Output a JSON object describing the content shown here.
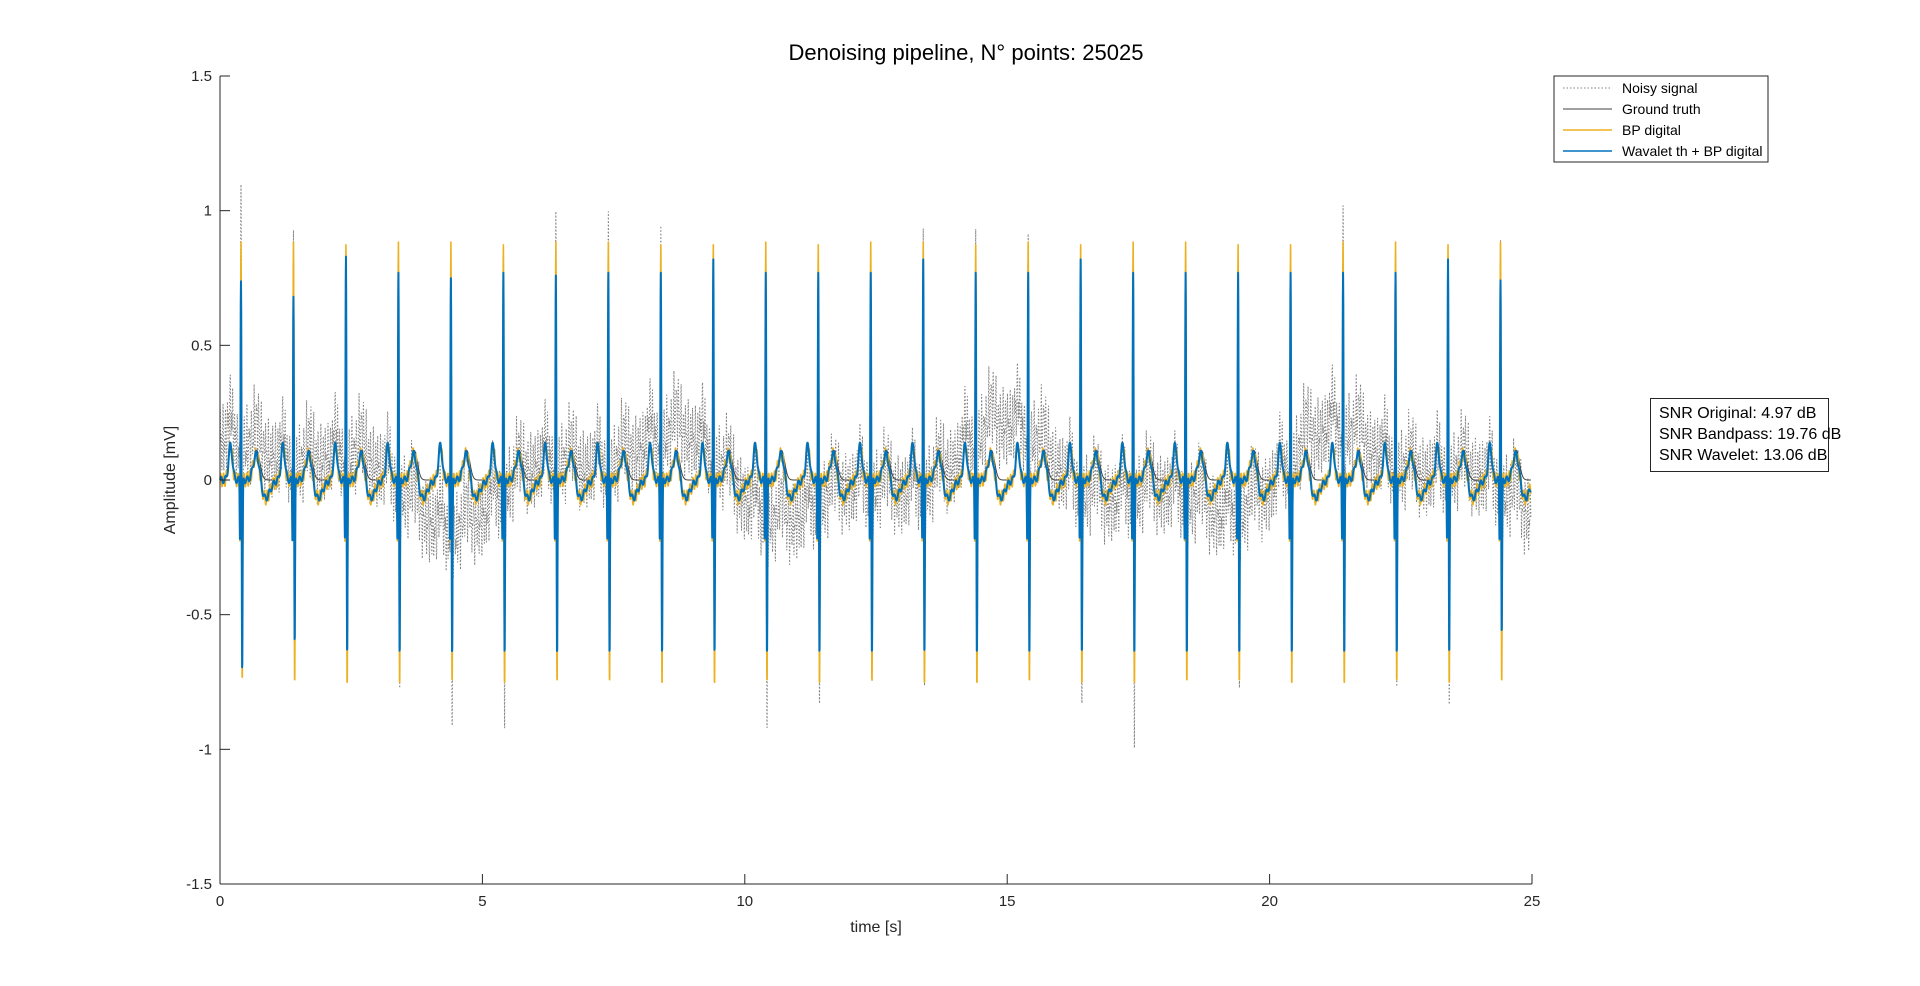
{
  "chart_data": {
    "type": "line",
    "title": "Denoising pipeline, N° points: 25025",
    "xlabel": "time [s]",
    "ylabel": "Amplitude [mV]",
    "xlim": [
      0,
      25
    ],
    "ylim": [
      -1.5,
      1.5
    ],
    "xticks": [
      "0",
      "5",
      "10",
      "15",
      "20",
      "25"
    ],
    "yticks": [
      "-1.5",
      "-1",
      "-0.5",
      "0",
      "0.5",
      "1",
      "1.5"
    ],
    "grid": false,
    "legend_position": "top-right",
    "n_points": 25025,
    "beat_times": [
      0.4,
      1.4,
      2.4,
      3.4,
      4.4,
      5.4,
      6.4,
      7.4,
      8.4,
      9.4,
      10.4,
      11.4,
      12.4,
      13.4,
      14.4,
      15.4,
      16.4,
      17.4,
      18.4,
      19.4,
      20.4,
      21.4,
      22.4,
      23.4,
      24.4
    ],
    "series": [
      {
        "name": "Noisy signal",
        "color": "#808080",
        "style": "dotted",
        "r_peaks": [
          1.07,
          0.98,
          0.85,
          0.96,
          0.93,
          0.94,
          1.05,
          1.06,
          0.9,
          0.88,
          0.93,
          0.95,
          1.0,
          1.08,
          0.9,
          0.86,
          0.9,
          0.92,
          1.03,
          1.07,
          0.9,
          0.95,
          0.88,
          0.86,
          1.04
        ],
        "s_troughs": [
          -0.77,
          -0.74,
          -0.88,
          -0.82,
          -0.8,
          -0.97,
          -0.78,
          -0.74,
          -0.78,
          -0.72,
          -0.86,
          -0.82,
          -0.8,
          -0.82,
          -0.9,
          -0.74,
          -0.87,
          -1.03,
          -0.7,
          -0.72,
          -0.82,
          -0.78,
          -0.9,
          -0.95,
          -0.72
        ]
      },
      {
        "name": "Ground truth",
        "color": "#404040",
        "style": "solid",
        "r_peaks": [
          0.86,
          0.87,
          0.86,
          0.86,
          0.86,
          0.86,
          0.86,
          0.86,
          0.86,
          0.86,
          0.86,
          0.86,
          0.86,
          0.86,
          0.86,
          0.86,
          0.86,
          0.86,
          0.86,
          0.86,
          0.86,
          0.86,
          0.86,
          0.86,
          0.86
        ],
        "s_troughs": [
          -0.76,
          -0.78,
          -0.78,
          -0.78,
          -0.78,
          -0.78,
          -0.78,
          -0.78,
          -0.78,
          -0.78,
          -0.78,
          -0.78,
          -0.78,
          -0.78,
          -0.78,
          -0.78,
          -0.78,
          -0.78,
          -0.78,
          -0.78,
          -0.78,
          -0.78,
          -0.78,
          -0.78,
          -0.78
        ]
      },
      {
        "name": "BP digital",
        "color": "#EDB120",
        "style": "solid",
        "r_peaks": [
          0.88,
          0.88,
          0.87,
          0.88,
          0.88,
          0.87,
          0.88,
          0.88,
          0.87,
          0.87,
          0.88,
          0.87,
          0.88,
          0.88,
          0.87,
          0.88,
          0.87,
          0.88,
          0.88,
          0.87,
          0.87,
          0.88,
          0.88,
          0.87,
          0.88
        ],
        "s_troughs": [
          -0.78,
          -0.79,
          -0.8,
          -0.8,
          -0.79,
          -0.8,
          -0.79,
          -0.79,
          -0.8,
          -0.8,
          -0.79,
          -0.8,
          -0.79,
          -0.8,
          -0.8,
          -0.79,
          -0.8,
          -0.8,
          -0.79,
          -0.79,
          -0.8,
          -0.8,
          -0.79,
          -0.8,
          -0.79
        ]
      },
      {
        "name": "Wavalet th + BP digital",
        "color": "#0072BD",
        "style": "solid",
        "r_peaks": [
          0.77,
          0.71,
          0.86,
          0.8,
          0.78,
          0.8,
          0.79,
          0.8,
          0.8,
          0.85,
          0.8,
          0.8,
          0.8,
          0.85,
          0.8,
          0.8,
          0.85,
          0.8,
          0.8,
          0.8,
          0.8,
          0.8,
          0.8,
          0.85,
          0.77
        ],
        "s_troughs": [
          -0.76,
          -0.65,
          -0.7,
          -0.7,
          -0.7,
          -0.7,
          -0.7,
          -0.7,
          -0.7,
          -0.7,
          -0.7,
          -0.7,
          -0.7,
          -0.7,
          -0.7,
          -0.7,
          -0.7,
          -0.7,
          -0.7,
          -0.7,
          -0.7,
          -0.7,
          -0.7,
          -0.7,
          -0.62
        ]
      }
    ]
  },
  "annotation": {
    "snr_original": "SNR Original: 4.97 dB",
    "snr_bandpass": "SNR Bandpass: 19.76 dB",
    "snr_wavelet": "SNR Wavelet: 13.06 dB"
  }
}
